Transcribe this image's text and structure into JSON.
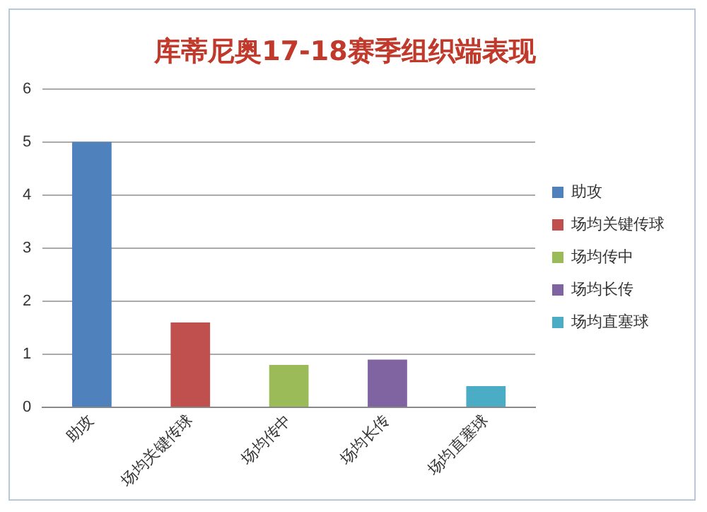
{
  "chart_data": {
    "type": "bar",
    "title": "库蒂尼奥17-18赛季组织端表现",
    "categories": [
      "助攻",
      "场均关键传球",
      "场均传中",
      "场均长传",
      "场均直塞球"
    ],
    "series": [
      {
        "name": "助攻",
        "color": "#4f81bd",
        "values": [
          5,
          null,
          null,
          null,
          null
        ]
      },
      {
        "name": "场均关键传球",
        "color": "#c0504d",
        "values": [
          null,
          1.6,
          null,
          null,
          null
        ]
      },
      {
        "name": "场均传中",
        "color": "#9bbb59",
        "values": [
          null,
          null,
          0.8,
          null,
          null
        ]
      },
      {
        "name": "场均长传",
        "color": "#8064a2",
        "values": [
          null,
          null,
          null,
          0.9,
          null
        ]
      },
      {
        "name": "场均直塞球",
        "color": "#4bacc6",
        "values": [
          null,
          null,
          null,
          null,
          0.4
        ]
      }
    ],
    "ylim": [
      0,
      6
    ],
    "yticks": [
      0,
      1,
      2,
      3,
      4,
      5,
      6
    ],
    "grid": "y",
    "legend": "right"
  }
}
